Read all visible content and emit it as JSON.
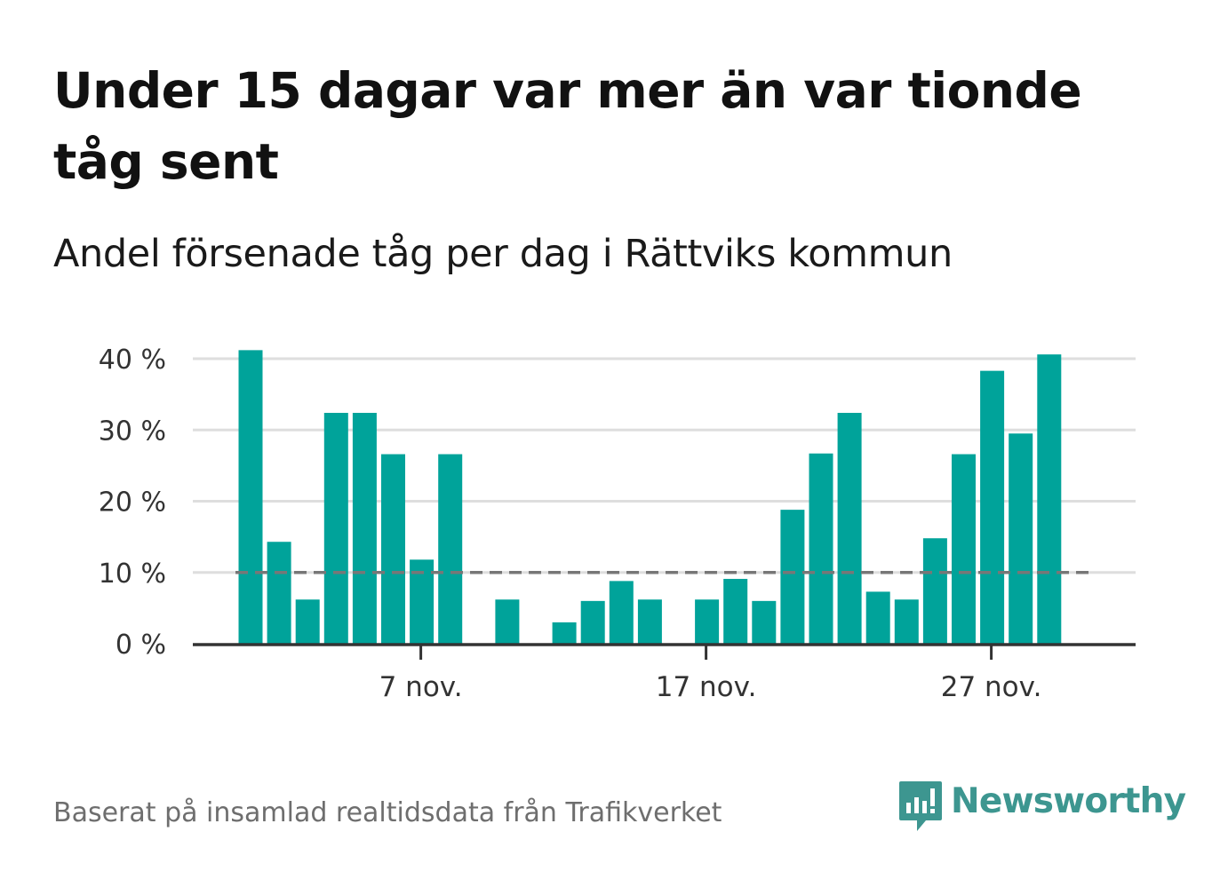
{
  "title": "Under 15 dagar var mer än var tionde tåg sent",
  "subtitle": "Andel försenade tåg per dag i Rättviks kommun",
  "source": "Baserat på insamlad realtidsdata från Trafikverket",
  "brand": {
    "name": "Newsworthy",
    "color": "#3d9690"
  },
  "chart_data": {
    "type": "bar",
    "bar_color": "#00a39a",
    "reference_line": {
      "value": 10,
      "style": "dashed",
      "color": "#777777"
    },
    "ylim": [
      0,
      40
    ],
    "yticks": [
      {
        "value": 0,
        "label": "0 %"
      },
      {
        "value": 10,
        "label": "10 %"
      },
      {
        "value": 20,
        "label": "20 %"
      },
      {
        "value": 30,
        "label": "30 %"
      },
      {
        "value": 40,
        "label": "40 %"
      }
    ],
    "xticks": [
      {
        "day": 7,
        "label": "7 nov."
      },
      {
        "day": 17,
        "label": "17 nov."
      },
      {
        "day": 27,
        "label": "27 nov."
      }
    ],
    "x_unit": "day of November",
    "days": [
      1,
      2,
      3,
      4,
      5,
      6,
      7,
      8,
      9,
      10,
      11,
      12,
      13,
      14,
      15,
      16,
      17,
      18,
      19,
      20,
      21,
      22,
      23,
      24,
      25,
      26,
      27,
      28,
      29,
      30
    ],
    "values": [
      41.2,
      14.3,
      6.2,
      32.4,
      32.4,
      26.6,
      11.8,
      26.6,
      0,
      6.2,
      0,
      3.0,
      6.0,
      8.8,
      6.2,
      0,
      6.2,
      9.1,
      6.0,
      18.8,
      26.7,
      32.4,
      7.3,
      6.2,
      14.8,
      26.6,
      38.3,
      29.5,
      40.6,
      0
    ],
    "grid": true,
    "legend": "none"
  }
}
